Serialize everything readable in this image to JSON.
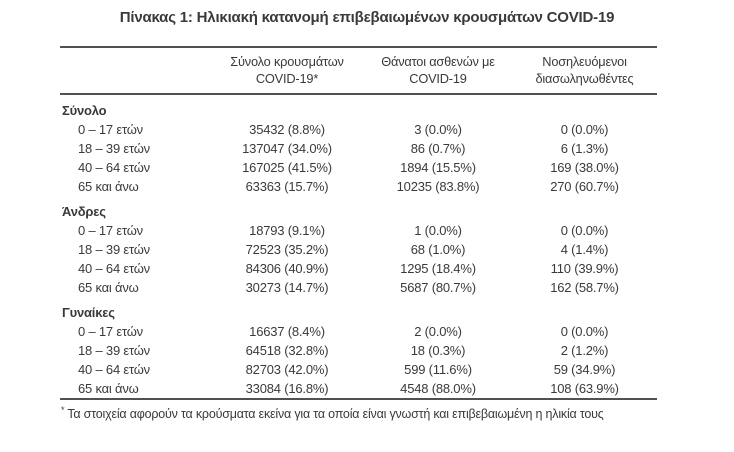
{
  "title": "Πίνακας 1: Ηλικιακή κατανομή επιβεβαιωμένων κρουσμάτων COVID-19",
  "colors": {
    "text": "#3a3a3c",
    "rule": "#515153",
    "background": "#ffffff"
  },
  "table": {
    "columns": [
      {
        "line1": "Σύνολο κρουσμάτων",
        "line2": "COVID-19*"
      },
      {
        "line1": "Θάνατοι ασθενών με",
        "line2": "COVID-19"
      },
      {
        "line1": "Νοσηλευόμενοι",
        "line2": "διασωληνωθέντες"
      }
    ],
    "sections": [
      {
        "name": "Σύνολο",
        "rows": [
          {
            "label": "0 – 17 ετών",
            "cases": "35432 (8.8%)",
            "deaths": "3 (0.0%)",
            "intubated": "0 (0.0%)"
          },
          {
            "label": "18 – 39 ετών",
            "cases": "137047 (34.0%)",
            "deaths": "86 (0.7%)",
            "intubated": "6 (1.3%)"
          },
          {
            "label": "40 – 64 ετών",
            "cases": "167025 (41.5%)",
            "deaths": "1894 (15.5%)",
            "intubated": "169 (38.0%)"
          },
          {
            "label": "65 και άνω",
            "cases": "63363 (15.7%)",
            "deaths": "10235 (83.8%)",
            "intubated": "270 (60.7%)"
          }
        ]
      },
      {
        "name": "Άνδρες",
        "rows": [
          {
            "label": "0 – 17 ετών",
            "cases": "18793 (9.1%)",
            "deaths": "1 (0.0%)",
            "intubated": "0 (0.0%)"
          },
          {
            "label": "18 – 39 ετών",
            "cases": "72523 (35.2%)",
            "deaths": "68 (1.0%)",
            "intubated": "4 (1.4%)"
          },
          {
            "label": "40 – 64 ετών",
            "cases": "84306 (40.9%)",
            "deaths": "1295 (18.4%)",
            "intubated": "110 (39.9%)"
          },
          {
            "label": "65 και άνω",
            "cases": "30273 (14.7%)",
            "deaths": "5687 (80.7%)",
            "intubated": "162 (58.7%)"
          }
        ]
      },
      {
        "name": "Γυναίκες",
        "rows": [
          {
            "label": "0 – 17 ετών",
            "cases": "16637 (8.4%)",
            "deaths": "2 (0.0%)",
            "intubated": "0 (0.0%)"
          },
          {
            "label": "18 – 39 ετών",
            "cases": "64518 (32.8%)",
            "deaths": "18 (0.3%)",
            "intubated": "2 (1.2%)"
          },
          {
            "label": "40 – 64 ετών",
            "cases": "82703 (42.0%)",
            "deaths": "599 (11.6%)",
            "intubated": "59 (34.9%)"
          },
          {
            "label": "65 και άνω",
            "cases": "33084 (16.8%)",
            "deaths": "4548 (88.0%)",
            "intubated": "108 (63.9%)"
          }
        ]
      }
    ]
  },
  "footnote": {
    "symbol": "*",
    "text": "Τα στοιχεία αφορούν τα κρούσματα εκείνα για τα οποία είναι γνωστή και επιβεβαιωμένη η ηλικία τους"
  }
}
